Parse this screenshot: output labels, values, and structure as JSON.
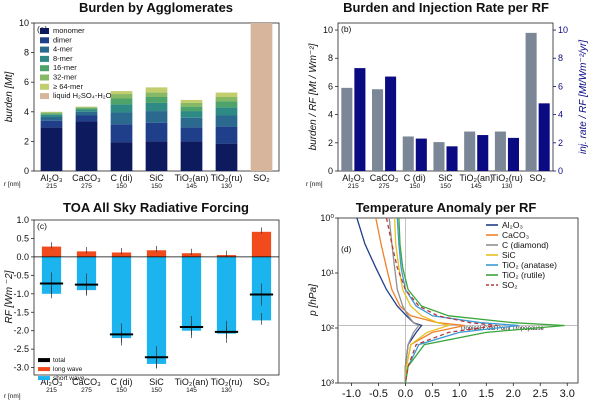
{
  "panels": {
    "a": {
      "title": "Burden by Agglomerates",
      "label": "(a)",
      "ylabel": "burden [Mt]",
      "r_label": "r [nm]"
    },
    "b": {
      "title": "Burden and Injection Rate per RF",
      "label": "(b)",
      "ylabel_left": "burden / RF [Mt / Wm⁻²]",
      "ylabel_right": "inj. rate / RF [Mt/Wm⁻²/yr]",
      "r_label": "r [nm]"
    },
    "c": {
      "title": "TOA All Sky Radiative Forcing",
      "label": "(c)",
      "ylabel": "RF [Wm ⁻2]",
      "r_label": "r [nm]"
    },
    "d": {
      "title": "Temperature Anomaly per RF",
      "label": "(d)",
      "ylabel": "p [hPa]",
      "annotation": "Tropical Cold Point Tropopause"
    }
  },
  "chart_data": [
    {
      "type": "bar",
      "title": "Burden by Agglomerates",
      "ylabel": "burden [Mt]",
      "ylim": [
        0,
        10
      ],
      "yticks": [
        "0",
        "2",
        "4",
        "6",
        "8",
        "10"
      ],
      "categories": [
        {
          "name": "Al₂O₃",
          "r": "215"
        },
        {
          "name": "CaCO₃",
          "r": "275"
        },
        {
          "name": "C (di)",
          "r": "150"
        },
        {
          "name": "SiC",
          "r": "150"
        },
        {
          "name": "TiO₂(an)",
          "r": "145"
        },
        {
          "name": "TiO₂(ru)",
          "r": "130"
        },
        {
          "name": "SO₂",
          "r": ""
        }
      ],
      "legend_position": "top-left",
      "series": [
        {
          "name": "monomer",
          "color": "#0d1a5e",
          "values": [
            2.95,
            3.35,
            1.95,
            2.0,
            2.0,
            1.85,
            0
          ]
        },
        {
          "name": "dimer",
          "color": "#1f3f8a",
          "values": [
            0.45,
            0.4,
            1.2,
            1.25,
            0.95,
            1.15,
            0
          ]
        },
        {
          "name": "4-mer",
          "color": "#2b6a8e",
          "values": [
            0.25,
            0.25,
            0.8,
            0.8,
            0.65,
            0.75,
            0
          ]
        },
        {
          "name": "8-mer",
          "color": "#2f8a86",
          "values": [
            0.15,
            0.15,
            0.55,
            0.55,
            0.45,
            0.55,
            0
          ]
        },
        {
          "name": "16-mer",
          "color": "#4ea36a",
          "values": [
            0.1,
            0.1,
            0.4,
            0.4,
            0.3,
            0.4,
            0
          ]
        },
        {
          "name": "32-mer",
          "color": "#87b866",
          "values": [
            0.05,
            0.05,
            0.3,
            0.3,
            0.25,
            0.3,
            0
          ]
        },
        {
          "name": "≥ 64-mer",
          "color": "#c2cd6e",
          "values": [
            0.05,
            0.05,
            0.2,
            0.35,
            0.2,
            0.3,
            0
          ]
        },
        {
          "name": "liquid H₂SO₄-H₂O",
          "color": "#d6b59c",
          "values": [
            0,
            0,
            0,
            0,
            0,
            0,
            10.0
          ]
        }
      ]
    },
    {
      "type": "bar",
      "title": "Burden and Injection Rate per RF",
      "ylim": [
        0,
        10.5
      ],
      "yticks": [
        "0",
        "2",
        "4",
        "6",
        "8",
        "10"
      ],
      "categories": [
        "Al₂O₃",
        "CaCO₃",
        "C (di)",
        "SiC",
        "TiO₂(an)",
        "TiO₂(ru)",
        "SO₂"
      ],
      "r": [
        "215",
        "275",
        "150",
        "150",
        "145",
        "130",
        ""
      ],
      "series": [
        {
          "name": "burden / RF",
          "color": "#7b8796",
          "axis": "left",
          "values": [
            5.9,
            5.8,
            2.45,
            2.05,
            2.8,
            2.8,
            9.8
          ]
        },
        {
          "name": "inj. rate / RF",
          "color": "#0a0a82",
          "axis": "right",
          "values": [
            7.3,
            6.7,
            2.3,
            1.75,
            2.55,
            2.35,
            4.8
          ]
        }
      ]
    },
    {
      "type": "bar",
      "title": "TOA All Sky Radiative Forcing",
      "ylabel": "RF [Wm ⁻2]",
      "ylim": [
        -3.2,
        1.0
      ],
      "yticks": [
        "-3.0",
        "-2.5",
        "-2.0",
        "-1.5",
        "-1.0",
        "-0.5",
        "0.0",
        "0.5",
        "1.0"
      ],
      "categories": [
        "Al₂O₃",
        "CaCO₃",
        "C (di)",
        "SiC",
        "TiO₂(an)",
        "TiO₂(ru)",
        "SO₂"
      ],
      "r": [
        "215",
        "275",
        "150",
        "150",
        "145",
        "130",
        ""
      ],
      "legend_position": "bottom-left",
      "series": [
        {
          "name": "total",
          "color": "#000000",
          "values": [
            -0.72,
            -0.75,
            -2.1,
            -2.72,
            -1.9,
            -2.03,
            -1.02
          ]
        },
        {
          "name": "long wave",
          "color": "#f04a1d",
          "values": [
            0.28,
            0.15,
            0.12,
            0.18,
            0.1,
            0.05,
            0.68
          ]
        },
        {
          "name": "short wave",
          "color": "#1cb4ee",
          "values": [
            -1.0,
            -0.9,
            -2.2,
            -2.9,
            -2.0,
            -2.08,
            -1.72
          ]
        }
      ]
    },
    {
      "type": "line",
      "title": "Temperature Anomaly per RF",
      "ylabel": "p [hPa]",
      "yscale": "log",
      "ylim": [
        1000,
        1
      ],
      "yticks": [
        "10⁰",
        "10¹",
        "10²",
        "10³"
      ],
      "xlim": [
        -1.25,
        3.2
      ],
      "xticks": [
        "-1.0",
        "-0.5",
        "0.0",
        "0.5",
        "1.0",
        "1.5",
        "2.0",
        "2.5",
        "3.0"
      ],
      "tropopause_hPa": 90,
      "annotation": "Tropical Cold Point Tropopause",
      "legend_position": "top-right",
      "series": [
        {
          "name": "Al₂O₃",
          "color": "#1f3f8a",
          "dash": "",
          "x": [
            -0.9,
            -0.75,
            -0.55,
            -0.35,
            -0.15,
            0.02,
            0.15,
            0.3,
            0.2,
            0.05,
            0.0,
            0.0
          ],
          "p": [
            1,
            3,
            8,
            20,
            40,
            60,
            80,
            90,
            120,
            200,
            500,
            1000
          ]
        },
        {
          "name": "CaCO₃",
          "color": "#f0822a",
          "dash": "",
          "x": [
            -0.55,
            -0.45,
            -0.35,
            -0.25,
            -0.1,
            0.1,
            0.6,
            1.1,
            0.5,
            0.1,
            0.02,
            0.0
          ],
          "p": [
            1,
            3,
            8,
            20,
            40,
            60,
            80,
            90,
            120,
            200,
            500,
            1000
          ]
        },
        {
          "name": "C (diamond)",
          "color": "#909090",
          "dash": "",
          "x": [
            -0.3,
            -0.25,
            -0.2,
            -0.15,
            -0.05,
            0.05,
            0.15,
            0.25,
            0.15,
            0.05,
            0.0,
            0.0
          ],
          "p": [
            1,
            3,
            8,
            20,
            40,
            60,
            80,
            90,
            120,
            200,
            500,
            1000
          ]
        },
        {
          "name": "SiC",
          "color": "#e8c020",
          "dash": "",
          "x": [
            -0.2,
            -0.18,
            -0.12,
            -0.05,
            0.1,
            0.3,
            0.6,
            0.8,
            0.4,
            0.1,
            0.02,
            0.0
          ],
          "p": [
            1,
            3,
            8,
            20,
            40,
            60,
            80,
            90,
            120,
            200,
            500,
            1000
          ]
        },
        {
          "name": "TiO₂ (anatase)",
          "color": "#3a9ad6",
          "dash": "",
          "x": [
            -0.15,
            -0.12,
            -0.08,
            0.0,
            0.2,
            0.5,
            1.4,
            2.1,
            1.0,
            0.25,
            0.05,
            0.0
          ],
          "p": [
            1,
            3,
            8,
            20,
            40,
            60,
            80,
            90,
            120,
            200,
            500,
            1000
          ]
        },
        {
          "name": "TiO₂ (rutile)",
          "color": "#3aa63a",
          "dash": "",
          "x": [
            -0.12,
            -0.1,
            -0.05,
            0.05,
            0.3,
            0.8,
            2.0,
            2.95,
            1.5,
            0.35,
            0.05,
            0.0
          ],
          "p": [
            1,
            3,
            8,
            20,
            40,
            60,
            80,
            90,
            120,
            200,
            500,
            1000
          ]
        },
        {
          "name": "SO₂",
          "color": "#b83a3a",
          "dash": "4,3",
          "x": [
            -0.35,
            -0.25,
            -0.15,
            0.0,
            0.25,
            0.6,
            1.2,
            1.7,
            0.8,
            0.2,
            0.05,
            0.0
          ],
          "p": [
            1,
            3,
            8,
            20,
            40,
            60,
            80,
            90,
            120,
            200,
            500,
            1000
          ]
        }
      ]
    }
  ]
}
